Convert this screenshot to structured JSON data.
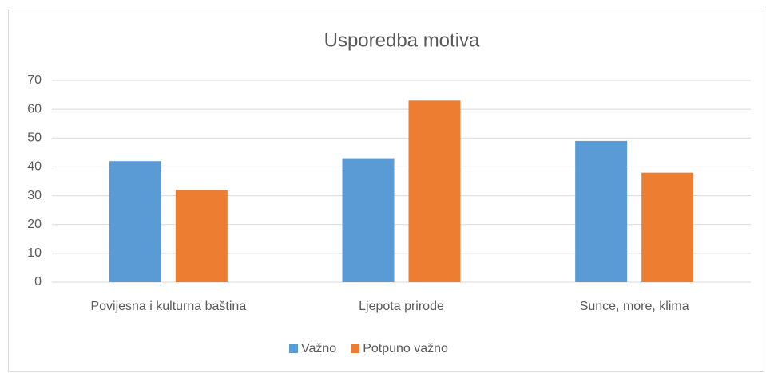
{
  "chart_data": {
    "type": "bar",
    "title": "Usporedba motiva",
    "categories": [
      "Povijesna i kulturna baština",
      "Ljepota prirode",
      "Sunce, more, klima"
    ],
    "series": [
      {
        "name": "Važno",
        "color": "#5b9bd5",
        "values": [
          42,
          43,
          49
        ]
      },
      {
        "name": "Potpuno važno",
        "color": "#ed7d31",
        "values": [
          32,
          63,
          38
        ]
      }
    ],
    "ylim": [
      0,
      70
    ],
    "yticks": [
      0,
      10,
      20,
      30,
      40,
      50,
      60,
      70
    ],
    "grid": true,
    "legend": "bottom"
  }
}
